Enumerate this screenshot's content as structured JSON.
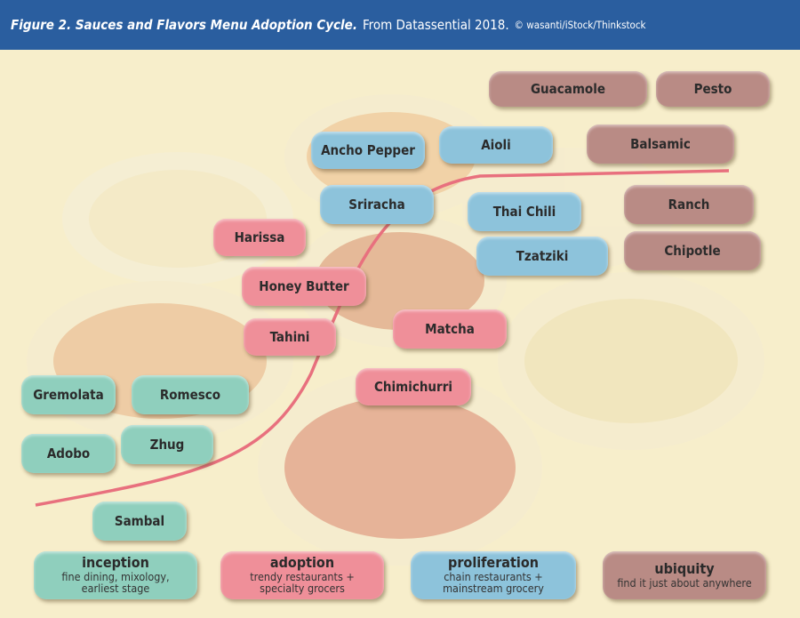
{
  "header": {
    "figure_label": "Figure 2. Sauces and Flavors Menu Adoption Cycle.",
    "source": "From Datassential 2018.",
    "credit": "© wasanti/iStock/Thinkstock"
  },
  "colors": {
    "header": "#2a5e9f",
    "background": "#f7eecb",
    "inception": "#8fcfbd",
    "adoption": "#ef8f99",
    "proliferation": "#8dc3db",
    "ubiquity": "#b98b85",
    "curve": "#e8707e"
  },
  "flavors": {
    "guacamole": {
      "label": "Guacamole",
      "stage": "ubiquity"
    },
    "pesto": {
      "label": "Pesto",
      "stage": "ubiquity"
    },
    "balsamic": {
      "label": "Balsamic",
      "stage": "ubiquity"
    },
    "ranch": {
      "label": "Ranch",
      "stage": "ubiquity"
    },
    "chipotle": {
      "label": "Chipotle",
      "stage": "ubiquity"
    },
    "ancho_pepper": {
      "label": "Ancho Pepper",
      "stage": "proliferation"
    },
    "aioli": {
      "label": "Aioli",
      "stage": "proliferation"
    },
    "sriracha": {
      "label": "Sriracha",
      "stage": "proliferation"
    },
    "thai_chili": {
      "label": "Thai Chili",
      "stage": "proliferation"
    },
    "tzatziki": {
      "label": "Tzatziki",
      "stage": "proliferation"
    },
    "harissa": {
      "label": "Harissa",
      "stage": "adoption"
    },
    "honey_butter": {
      "label": "Honey Butter",
      "stage": "adoption"
    },
    "tahini": {
      "label": "Tahini",
      "stage": "adoption"
    },
    "matcha": {
      "label": "Matcha",
      "stage": "adoption"
    },
    "chimichurri": {
      "label": "Chimichurri",
      "stage": "adoption"
    },
    "gremolata": {
      "label": "Gremolata",
      "stage": "inception"
    },
    "romesco": {
      "label": "Romesco",
      "stage": "inception"
    },
    "zhug": {
      "label": "Zhug",
      "stage": "inception"
    },
    "adobo": {
      "label": "Adobo",
      "stage": "inception"
    },
    "sambal": {
      "label": "Sambal",
      "stage": "inception"
    }
  },
  "legend": [
    {
      "title": "inception",
      "desc1": "fine dining, mixology,",
      "desc2": "earliest stage"
    },
    {
      "title": "adoption",
      "desc1": "trendy restaurants +",
      "desc2": "specialty grocers"
    },
    {
      "title": "proliferation",
      "desc1": "chain restaurants +",
      "desc2": "mainstream grocery"
    },
    {
      "title": "ubiquity",
      "desc1": "find it just about anywhere",
      "desc2": ""
    }
  ]
}
